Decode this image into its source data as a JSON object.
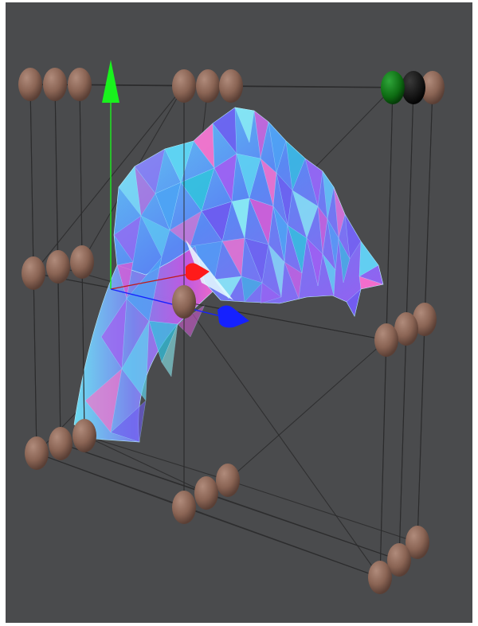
{
  "viewport": {
    "background": "#4a4b4d"
  },
  "gizmo": {
    "axis_colors": {
      "x": "#ff1a1a",
      "y": "#19f21d",
      "z": "#1521ff"
    },
    "icons": [
      "x-axis-arrow-icon",
      "y-axis-arrow-icon",
      "z-axis-arrow-icon"
    ]
  },
  "control_points": {
    "default_color": "#8a6454",
    "selected_color": "#0d6b12",
    "hover_color": "#0b0b0b",
    "count": 27
  },
  "mesh": {
    "palette": [
      "#5fd7f2",
      "#4ea4f5",
      "#6e5cf0",
      "#a45df2",
      "#d65cd6",
      "#ff6fc8",
      "#33c2de",
      "#8bf0f5"
    ]
  }
}
